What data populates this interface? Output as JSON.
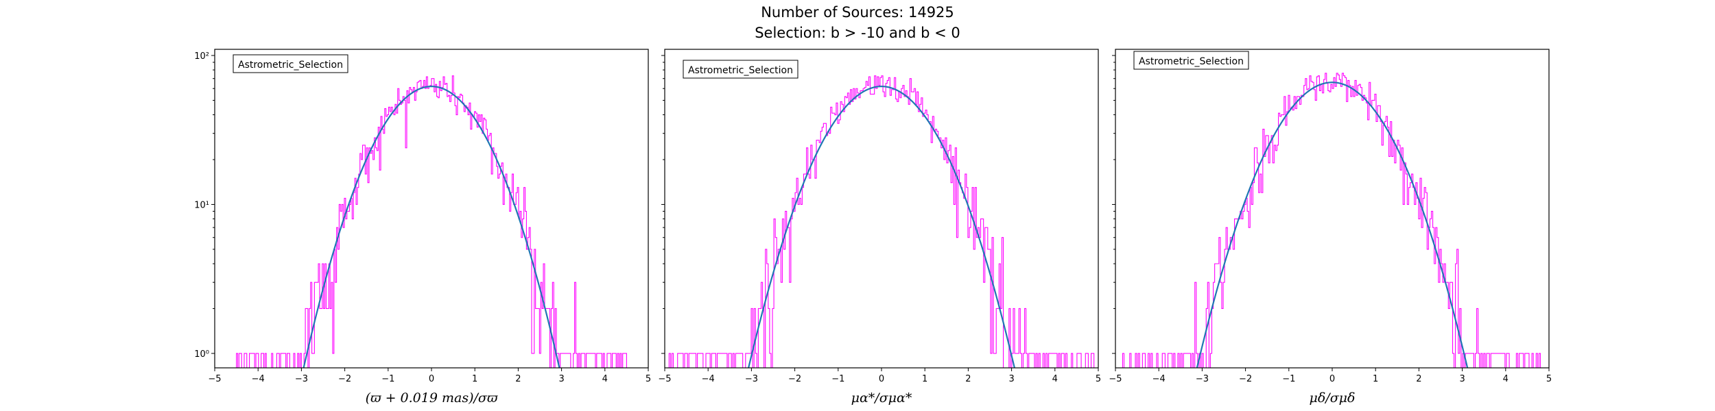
{
  "figure": {
    "title_line1": "Number of Sources: 14925",
    "title_line2": "Selection: b > -10 and b < 0"
  },
  "colors": {
    "histogram": "#ff00ff",
    "fit_curve": "#1f77b4",
    "axes": "#000000"
  },
  "chart_data": [
    {
      "type": "histogram",
      "legend": "Astrometric_Selection",
      "xlabel": "(ϖ + 0.019 mas)/σϖ",
      "xlim": [
        -5,
        5
      ],
      "ylim": [
        0.8,
        110
      ],
      "yscale": "log",
      "x_ticks": [
        -5,
        -4,
        -3,
        -2,
        -1,
        0,
        1,
        2,
        3,
        4,
        5
      ],
      "x_tick_labels": [
        "−5",
        "−4",
        "−3",
        "−2",
        "−1",
        "0",
        "1",
        "2",
        "3",
        "4",
        "5"
      ],
      "y_ticks": [
        1,
        10,
        100
      ],
      "y_tick_labels": [
        "10⁰",
        "10¹",
        "10²"
      ],
      "hist_x_range": [
        -4.5,
        4.5
      ],
      "peak": 62,
      "fit": {
        "amplitude": 62,
        "mean": 0.0,
        "sigma": 1.0
      }
    },
    {
      "type": "histogram",
      "legend": "Astrometric_Selection",
      "xlabel": "μα*/σμα*",
      "xlim": [
        -5,
        5
      ],
      "ylim": [
        0.8,
        110
      ],
      "yscale": "log",
      "x_ticks": [
        -5,
        -4,
        -3,
        -2,
        -1,
        0,
        1,
        2,
        3,
        4,
        5
      ],
      "x_tick_labels": [
        "−5",
        "−4",
        "−3",
        "−2",
        "−1",
        "0",
        "1",
        "2",
        "3",
        "4",
        "5"
      ],
      "hist_x_range": [
        -4.9,
        4.9
      ],
      "peak": 62,
      "fit": {
        "amplitude": 62,
        "mean": 0.0,
        "sigma": 1.04
      }
    },
    {
      "type": "histogram",
      "legend": "Astrometric_Selection",
      "xlabel": "μδ/σμδ",
      "xlim": [
        -5,
        5
      ],
      "ylim": [
        0.8,
        110
      ],
      "yscale": "log",
      "x_ticks": [
        -5,
        -4,
        -3,
        -2,
        -1,
        0,
        1,
        2,
        3,
        4,
        5
      ],
      "x_tick_labels": [
        "−5",
        "−4",
        "−3",
        "−2",
        "−1",
        "0",
        "1",
        "2",
        "3",
        "4",
        "5"
      ],
      "hist_x_range": [
        -4.9,
        4.9
      ],
      "peak": 66,
      "fit": {
        "amplitude": 66,
        "mean": 0.0,
        "sigma": 1.05
      }
    }
  ]
}
